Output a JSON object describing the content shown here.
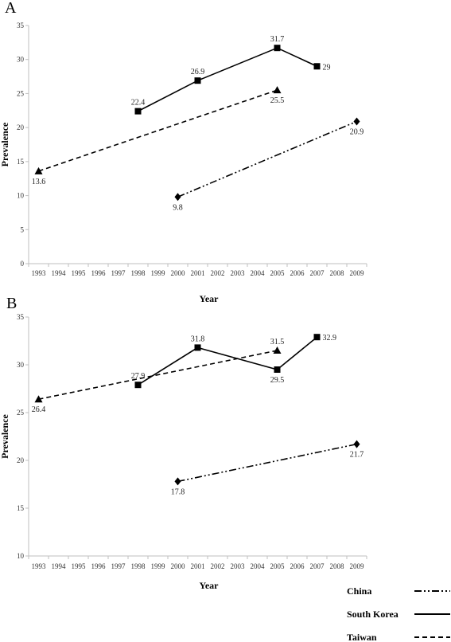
{
  "chart_data": [
    {
      "panel": "A",
      "type": "line",
      "xlabel": "Year",
      "ylabel": "Prevalence",
      "ylim": [
        0,
        35
      ],
      "yticks": [
        0,
        5,
        10,
        15,
        20,
        25,
        30,
        35
      ],
      "categories": [
        "1993",
        "1994",
        "1995",
        "1996",
        "1997",
        "1998",
        "1999",
        "2000",
        "2001",
        "2002",
        "2003",
        "2004",
        "2005",
        "2006",
        "2007",
        "2008",
        "2009"
      ],
      "series": [
        {
          "name": "South Korea",
          "marker": "square",
          "dash": "solid",
          "points": [
            {
              "x": "1998",
              "y": 22.4,
              "label": "22.4"
            },
            {
              "x": "2001",
              "y": 26.9,
              "label": "26.9"
            },
            {
              "x": "2005",
              "y": 31.7,
              "label": "31.7"
            },
            {
              "x": "2007",
              "y": 29,
              "label": "29"
            }
          ]
        },
        {
          "name": "Taiwan",
          "marker": "triangle",
          "dash": "dashed",
          "points": [
            {
              "x": "1993",
              "y": 13.6,
              "label": "13.6"
            },
            {
              "x": "2005",
              "y": 25.5,
              "label": "25.5"
            }
          ]
        },
        {
          "name": "China",
          "marker": "diamond",
          "dash": "dashdotdot",
          "points": [
            {
              "x": "2000",
              "y": 9.8,
              "label": "9.8"
            },
            {
              "x": "2009",
              "y": 20.9,
              "label": "20.9"
            }
          ]
        }
      ]
    },
    {
      "panel": "B",
      "type": "line",
      "xlabel": "Year",
      "ylabel": "Prevalence",
      "ylim": [
        10,
        35
      ],
      "yticks": [
        10,
        15,
        20,
        25,
        30,
        35
      ],
      "categories": [
        "1993",
        "1994",
        "1995",
        "1996",
        "1997",
        "1998",
        "1999",
        "2000",
        "2001",
        "2002",
        "2003",
        "2004",
        "2005",
        "2006",
        "2007",
        "2008",
        "2009"
      ],
      "series": [
        {
          "name": "South Korea",
          "marker": "square",
          "dash": "solid",
          "points": [
            {
              "x": "1998",
              "y": 27.9,
              "label": "27.9"
            },
            {
              "x": "2001",
              "y": 31.8,
              "label": "31.8"
            },
            {
              "x": "2005",
              "y": 29.5,
              "label": "29.5"
            },
            {
              "x": "2007",
              "y": 32.9,
              "label": "32.9"
            }
          ]
        },
        {
          "name": "Taiwan",
          "marker": "triangle",
          "dash": "dashed",
          "points": [
            {
              "x": "1993",
              "y": 26.4,
              "label": "26.4"
            },
            {
              "x": "2005",
              "y": 31.5,
              "label": "31.5"
            }
          ]
        },
        {
          "name": "China",
          "marker": "diamond",
          "dash": "dashdotdot",
          "points": [
            {
              "x": "2000",
              "y": 17.8,
              "label": "17.8"
            },
            {
              "x": "2009",
              "y": 21.7,
              "label": "21.7"
            }
          ]
        }
      ]
    }
  ],
  "legend": {
    "placement": "bottom-right",
    "items": [
      {
        "label": "China",
        "dash": "dashdotdot"
      },
      {
        "label": "South Korea",
        "dash": "solid"
      },
      {
        "label": "Taiwan",
        "dash": "dashed"
      }
    ]
  },
  "style": {
    "line_color": "#000000",
    "axis_color": "#bfbfbf",
    "text_color": "#222222"
  }
}
